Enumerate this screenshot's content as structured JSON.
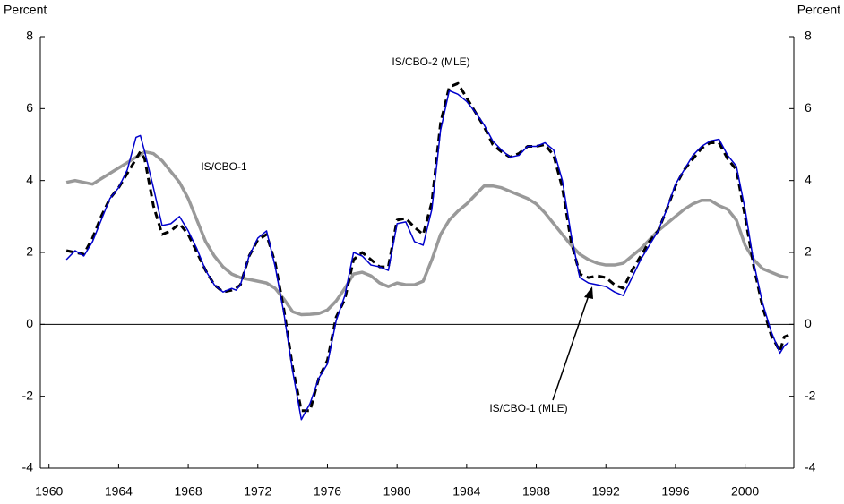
{
  "chart_data": {
    "type": "line",
    "y_label": "Percent",
    "y2_label": "Percent",
    "xlim": [
      1959.5,
      2002.8
    ],
    "xticks": [
      1960,
      1964,
      1968,
      1972,
      1976,
      1980,
      1984,
      1988,
      1992,
      1996,
      2000
    ],
    "ylim": [
      -4,
      8
    ],
    "yticks": [
      -4,
      -2,
      0,
      2,
      4,
      6,
      8
    ],
    "y2lim": [
      -4,
      8
    ],
    "y2ticks": [
      -4,
      -2,
      0,
      2,
      4,
      6,
      8
    ],
    "x": [
      1961,
      1961.5,
      1962,
      1962.5,
      1963,
      1963.5,
      1964,
      1964.5,
      1965,
      1965.25,
      1965.5,
      1966,
      1966.5,
      1967,
      1967.5,
      1968,
      1968.5,
      1969,
      1969.5,
      1970,
      1970.5,
      1970.75,
      1971,
      1971.5,
      1972,
      1972.5,
      1973,
      1973.5,
      1974,
      1974.5,
      1975,
      1975.5,
      1976,
      1976.5,
      1977,
      1977.5,
      1978,
      1978.5,
      1979,
      1979.5,
      1980,
      1980.5,
      1981,
      1981.5,
      1982,
      1982.5,
      1983,
      1983.5,
      1984,
      1984.5,
      1985,
      1985.5,
      1986,
      1986.5,
      1987,
      1987.5,
      1988,
      1988.5,
      1989,
      1989.5,
      1990,
      1990.5,
      1991,
      1991.5,
      1992,
      1992.5,
      1993,
      1993.5,
      1994,
      1994.5,
      1995,
      1995.5,
      1996,
      1996.5,
      1997,
      1997.5,
      1998,
      1998.5,
      1999,
      1999.5,
      2000,
      2000.5,
      2001,
      2001.5,
      2002,
      2002.25,
      2002.5
    ],
    "series": [
      {
        "name": "IS/CBO-1",
        "color": "#999999",
        "style": "solid",
        "width": 3.5,
        "values": [
          3.95,
          4.0,
          3.95,
          3.9,
          4.05,
          4.2,
          4.35,
          4.5,
          4.65,
          4.72,
          4.8,
          4.75,
          4.55,
          4.25,
          3.95,
          3.5,
          2.9,
          2.3,
          1.9,
          1.6,
          1.4,
          1.35,
          1.3,
          1.25,
          1.2,
          1.15,
          1.0,
          0.7,
          0.35,
          0.27,
          0.28,
          0.3,
          0.4,
          0.65,
          1.0,
          1.4,
          1.45,
          1.35,
          1.15,
          1.05,
          1.15,
          1.1,
          1.1,
          1.2,
          1.8,
          2.5,
          2.9,
          3.15,
          3.35,
          3.6,
          3.85,
          3.85,
          3.8,
          3.7,
          3.6,
          3.5,
          3.35,
          3.1,
          2.8,
          2.5,
          2.2,
          1.95,
          1.8,
          1.7,
          1.65,
          1.65,
          1.7,
          1.9,
          2.1,
          2.35,
          2.6,
          2.8,
          3.0,
          3.2,
          3.35,
          3.45,
          3.45,
          3.3,
          3.2,
          2.9,
          2.2,
          1.8,
          1.55,
          1.45,
          1.35,
          1.32,
          1.3
        ]
      },
      {
        "name": "IS/CBO-1 (MLE)",
        "color": "#000000",
        "style": "dashed",
        "width": 3,
        "values": [
          2.05,
          2.0,
          1.95,
          2.4,
          3.0,
          3.5,
          3.8,
          4.2,
          4.6,
          4.8,
          4.6,
          3.3,
          2.5,
          2.6,
          2.8,
          2.5,
          2.0,
          1.5,
          1.1,
          0.9,
          0.95,
          1.0,
          1.1,
          1.9,
          2.35,
          2.5,
          1.7,
          0.4,
          -1.2,
          -2.4,
          -2.4,
          -1.5,
          -1.0,
          0.2,
          0.7,
          1.8,
          2.0,
          1.8,
          1.6,
          1.6,
          2.9,
          2.95,
          2.7,
          2.5,
          3.4,
          5.6,
          6.6,
          6.7,
          6.3,
          5.9,
          5.5,
          5.0,
          4.8,
          4.65,
          4.75,
          4.95,
          4.95,
          5.0,
          4.7,
          3.8,
          2.3,
          1.4,
          1.3,
          1.35,
          1.3,
          1.1,
          1.0,
          1.5,
          1.9,
          2.3,
          2.6,
          3.2,
          3.85,
          4.3,
          4.6,
          4.9,
          5.05,
          5.05,
          4.6,
          4.3,
          3.0,
          1.6,
          0.5,
          -0.3,
          -0.75,
          -0.35,
          -0.3
        ]
      },
      {
        "name": "IS/CBO-2 (MLE)",
        "color": "#0000cc",
        "style": "solid",
        "width": 1.5,
        "values": [
          1.8,
          2.05,
          1.9,
          2.3,
          2.9,
          3.5,
          3.8,
          4.3,
          5.2,
          5.25,
          4.8,
          3.8,
          2.75,
          2.8,
          3.0,
          2.6,
          2.1,
          1.5,
          1.1,
          0.9,
          1.0,
          0.95,
          1.1,
          1.9,
          2.4,
          2.6,
          1.6,
          0.3,
          -1.3,
          -2.65,
          -2.2,
          -1.5,
          -1.1,
          0.1,
          0.8,
          2.0,
          1.9,
          1.65,
          1.6,
          1.5,
          2.8,
          2.85,
          2.3,
          2.2,
          3.2,
          5.4,
          6.5,
          6.4,
          6.2,
          5.9,
          5.55,
          5.1,
          4.85,
          4.65,
          4.7,
          4.95,
          4.95,
          5.05,
          4.85,
          4.0,
          2.5,
          1.3,
          1.15,
          1.1,
          1.05,
          0.9,
          0.8,
          1.3,
          1.8,
          2.2,
          2.6,
          3.2,
          3.9,
          4.3,
          4.7,
          4.95,
          5.1,
          5.15,
          4.7,
          4.4,
          3.2,
          1.7,
          0.6,
          -0.2,
          -0.8,
          -0.6,
          -0.5
        ]
      }
    ]
  }
}
